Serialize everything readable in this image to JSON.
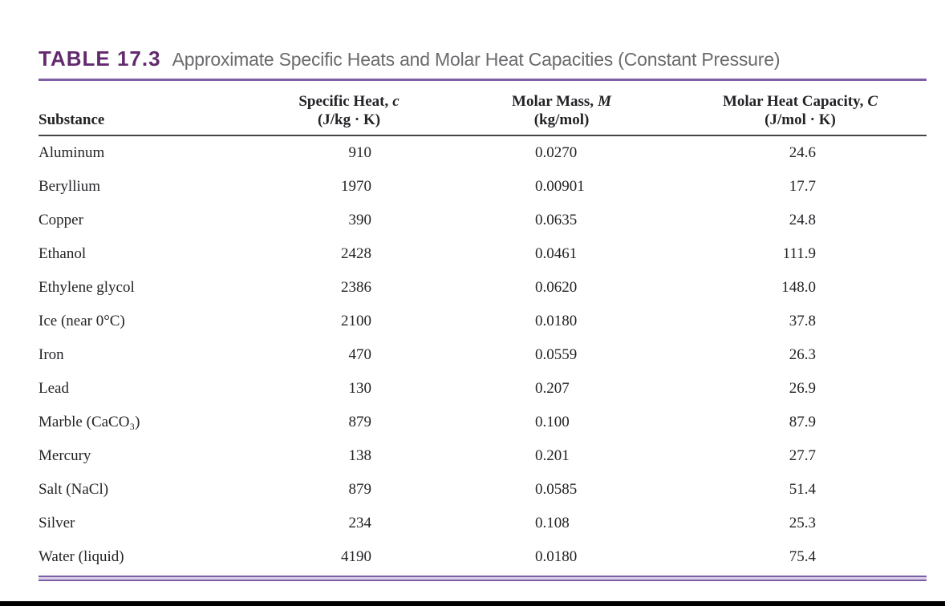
{
  "table": {
    "title_label": "TABLE 17.3",
    "title_text": "Approximate Specific Heats and Molar Heat Capacities (Constant Pressure)",
    "columns": [
      {
        "label": "Substance",
        "symbol": "",
        "unit": ""
      },
      {
        "label": "Specific Heat,",
        "symbol": "c",
        "unit": "(J/kg · K)"
      },
      {
        "label": "Molar Mass,",
        "symbol": "M",
        "unit": "(kg/mol)"
      },
      {
        "label": "Molar Heat Capacity,",
        "symbol": "C",
        "unit": "(J/mol · K)"
      }
    ],
    "rows": [
      [
        "Aluminum",
        "910",
        "0.0270",
        "24.6"
      ],
      [
        "Beryllium",
        "1970",
        "0.00901",
        "17.7"
      ],
      [
        "Copper",
        "390",
        "0.0635",
        "24.8"
      ],
      [
        "Ethanol",
        "2428",
        "0.0461",
        "111.9"
      ],
      [
        "Ethylene glycol",
        "2386",
        "0.0620",
        "148.0"
      ],
      [
        "Ice (near 0°C)",
        "2100",
        "0.0180",
        "37.8"
      ],
      [
        "Iron",
        "470",
        "0.0559",
        "26.3"
      ],
      [
        "Lead",
        "130",
        "0.207",
        "26.9"
      ],
      [
        "Marble (CaCO₃)",
        "879",
        "0.100",
        "87.9"
      ],
      [
        "Mercury",
        "138",
        "0.201",
        "27.7"
      ],
      [
        "Salt (NaCl)",
        "879",
        "0.0585",
        "51.4"
      ],
      [
        "Silver",
        "234",
        "0.108",
        "25.3"
      ],
      [
        "Water (liquid)",
        "4190",
        "0.0180",
        "75.4"
      ]
    ]
  },
  "colors": {
    "table_label_purple": "#622a6d",
    "rule_purple": "#7e5fa6",
    "title_gray": "#6b6b6e",
    "body_text": "#232327",
    "header_rule": "#454548",
    "bottom_bar": "#000000"
  }
}
